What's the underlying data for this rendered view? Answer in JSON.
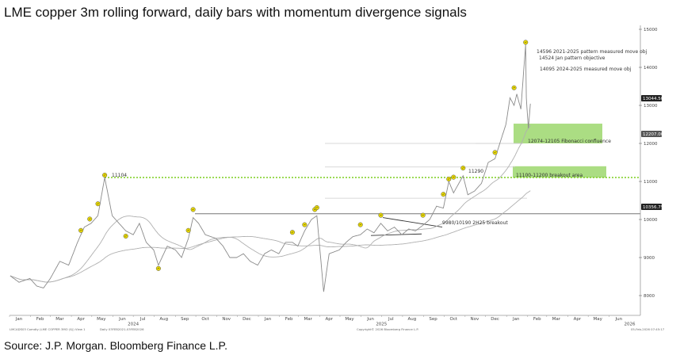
{
  "title": "LME copper 3m rolling forward, daily bars with momentum divergence signals",
  "source": "Source: J.P. Morgan. Bloomberg Finance L.P.",
  "footer": {
    "ticker": "LMCADS03 Comdty (LME COPPER 3MO ($)) View 1",
    "range": "Daily 03FEB2021-03FEB2026",
    "copyright": "Copyright© 2026 Bloomberg Finance L.P.",
    "timestamp": "05-Feb-2026 07:45:17"
  },
  "colors": {
    "price": "#8a8a8a",
    "ma": "#b0b0b0",
    "marker": "#e8d800",
    "green_box": "#8fd15a",
    "green_dotted": "#7ccf1e",
    "resistance": "#777777",
    "label_box": "#222222"
  },
  "chart_data": {
    "type": "line",
    "title": "LME copper 3m rolling forward, daily bars with momentum divergence signals",
    "ylim": [
      7800,
      15200
    ],
    "yticks": [
      8000,
      9000,
      10000,
      11000,
      12000,
      13000,
      14000,
      15000
    ],
    "xlim": [
      "2024-01-01",
      "2026-06-30"
    ],
    "month_ticks": [
      "Jan",
      "Feb",
      "Mar",
      "Apr",
      "May",
      "Jun",
      "Jul",
      "Aug",
      "Sep",
      "Oct",
      "Nov",
      "Dec",
      "Jan",
      "Feb",
      "Mar",
      "Apr",
      "May",
      "Jun",
      "Jul",
      "Aug",
      "Sep",
      "Oct",
      "Nov",
      "Dec",
      "Jan",
      "Feb",
      "Mar",
      "Apr",
      "May",
      "Jun"
    ],
    "year_labels": [
      "2024",
      "2025",
      "2026"
    ],
    "grid": false,
    "series": [
      {
        "values": [
          [
            "2024-01-02",
            8520
          ],
          [
            "2024-01-15",
            8350
          ],
          [
            "2024-01-31",
            8450
          ],
          [
            "2024-02-10",
            8250
          ],
          [
            "2024-02-20",
            8200
          ],
          [
            "2024-03-01",
            8450
          ],
          [
            "2024-03-15",
            8900
          ],
          [
            "2024-03-28",
            8800
          ],
          [
            "2024-04-10",
            9400
          ],
          [
            "2024-04-20",
            9800
          ],
          [
            "2024-04-30",
            9900
          ],
          [
            "2024-05-10",
            10100
          ],
          [
            "2024-05-20",
            11104
          ],
          [
            "2024-05-31",
            10100
          ],
          [
            "2024-06-10",
            9900
          ],
          [
            "2024-06-20",
            9700
          ],
          [
            "2024-07-01",
            9600
          ],
          [
            "2024-07-10",
            9900
          ],
          [
            "2024-07-20",
            9400
          ],
          [
            "2024-07-31",
            9200
          ],
          [
            "2024-08-07",
            8800
          ],
          [
            "2024-08-20",
            9300
          ],
          [
            "2024-09-01",
            9200
          ],
          [
            "2024-09-10",
            9000
          ],
          [
            "2024-09-20",
            9500
          ],
          [
            "2024-09-27",
            10050
          ],
          [
            "2024-10-05",
            9900
          ],
          [
            "2024-10-15",
            9600
          ],
          [
            "2024-10-31",
            9500
          ],
          [
            "2024-11-10",
            9300
          ],
          [
            "2024-11-20",
            9000
          ],
          [
            "2024-11-30",
            9000
          ],
          [
            "2024-12-10",
            9100
          ],
          [
            "2024-12-20",
            8900
          ],
          [
            "2024-12-31",
            8800
          ],
          [
            "2025-01-10",
            9100
          ],
          [
            "2025-01-20",
            9200
          ],
          [
            "2025-01-31",
            9100
          ],
          [
            "2025-02-10",
            9400
          ],
          [
            "2025-02-20",
            9400
          ],
          [
            "2025-02-28",
            9300
          ],
          [
            "2025-03-10",
            9700
          ],
          [
            "2025-03-20",
            10000
          ],
          [
            "2025-03-28",
            10100
          ],
          [
            "2025-04-07",
            8100
          ],
          [
            "2025-04-15",
            9100
          ],
          [
            "2025-04-30",
            9200
          ],
          [
            "2025-05-10",
            9400
          ],
          [
            "2025-05-20",
            9550
          ],
          [
            "2025-05-31",
            9600
          ],
          [
            "2025-06-10",
            9750
          ],
          [
            "2025-06-20",
            9650
          ],
          [
            "2025-06-30",
            9900
          ],
          [
            "2025-07-10",
            9700
          ],
          [
            "2025-07-20",
            9800
          ],
          [
            "2025-07-31",
            9600
          ],
          [
            "2025-08-10",
            9750
          ],
          [
            "2025-08-20",
            9700
          ],
          [
            "2025-08-31",
            9850
          ],
          [
            "2025-09-10",
            10000
          ],
          [
            "2025-09-20",
            10350
          ],
          [
            "2025-09-30",
            10300
          ],
          [
            "2025-10-08",
            11000
          ],
          [
            "2025-10-15",
            10700
          ],
          [
            "2025-10-29",
            11150
          ],
          [
            "2025-11-05",
            10650
          ],
          [
            "2025-11-15",
            10750
          ],
          [
            "2025-11-25",
            10950
          ],
          [
            "2025-12-05",
            11500
          ],
          [
            "2025-12-15",
            11600
          ],
          [
            "2025-12-22",
            12000
          ],
          [
            "2025-12-31",
            12500
          ],
          [
            "2026-01-06",
            13200
          ],
          [
            "2026-01-12",
            13000
          ],
          [
            "2026-01-16",
            13300
          ],
          [
            "2026-01-22",
            12900
          ],
          [
            "2026-01-29",
            14600
          ],
          [
            "2026-01-30",
            13200
          ],
          [
            "2026-02-02",
            12400
          ],
          [
            "2026-02-05",
            13044.5
          ]
        ]
      }
    ],
    "divergence_signals": [
      [
        "2024-04-15",
        9650
      ],
      [
        "2024-04-28",
        9950
      ],
      [
        "2024-05-10",
        10350
      ],
      [
        "2024-05-20",
        11104
      ],
      [
        "2024-06-20",
        9500
      ],
      [
        "2024-08-07",
        8650
      ],
      [
        "2024-09-20",
        9650
      ],
      [
        "2024-09-27",
        10200
      ],
      [
        "2025-02-20",
        9600
      ],
      [
        "2025-03-10",
        9800
      ],
      [
        "2025-03-25",
        10200
      ],
      [
        "2025-03-28",
        10250
      ],
      [
        "2025-05-31",
        9800
      ],
      [
        "2025-06-30",
        10050
      ],
      [
        "2025-08-31",
        10050
      ],
      [
        "2025-09-30",
        10600
      ],
      [
        "2025-10-08",
        11000
      ],
      [
        "2025-10-15",
        11050
      ],
      [
        "2025-10-29",
        11290
      ],
      [
        "2025-12-15",
        11700
      ],
      [
        "2026-01-12",
        13400
      ],
      [
        "2026-01-29",
        14596
      ]
    ],
    "price_labels": [
      "13044.50",
      "12207.00",
      "10356.75"
    ],
    "levels": {
      "high_2024": 11104,
      "resistance": 10150
    },
    "zones": [
      {
        "label": "12074-12105 Fibonacci confluence",
        "from": 12000,
        "to": 12520
      },
      {
        "label": "11100-11200 breakout area",
        "from": 11100,
        "to": 11400
      }
    ],
    "annotations": [
      "11104",
      "11290",
      "9980/10190 2H25 breakout",
      "14596 2021-2025 pattern measured move obj",
      "14524 Jan pattern objective",
      "14095 2024-2025 measured move obj"
    ]
  }
}
